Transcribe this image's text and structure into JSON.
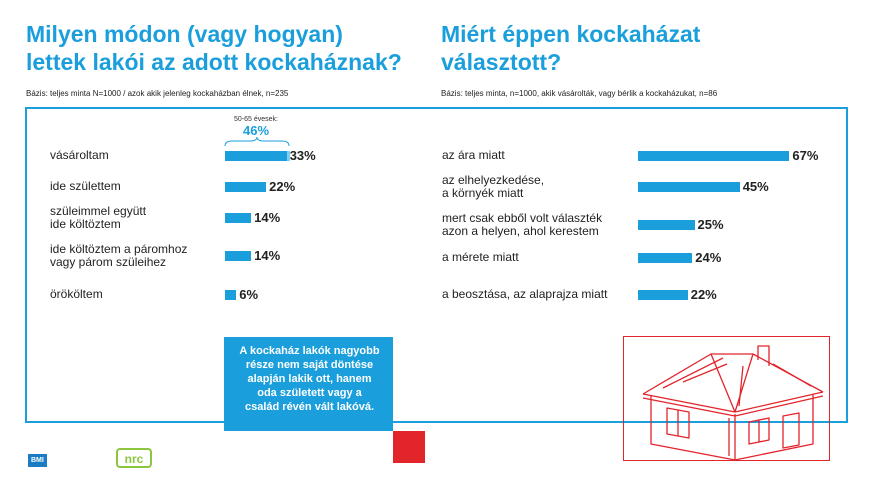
{
  "left": {
    "title_lines": [
      "Milyen módon (vagy hogyan)",
      "lettek lakói az adott kockaháznak?"
    ],
    "basis": "Bázis: teljes minta N=1000 / azok akik jelenleg kockaházban élnek, n=235",
    "annotation_label": "50-65 évesek:",
    "annotation_value": "46%",
    "annotation_number": 46
  },
  "right": {
    "title_lines": [
      "Miért éppen kockaházat",
      "választott?"
    ],
    "basis": "Bázis: teljes minta, n=1000, akik vásárolták, vagy bérlik a kockaházukat, n=86"
  },
  "chart_data": [
    {
      "type": "bar",
      "orientation": "horizontal",
      "title": "Milyen módon (vagy hogyan) lettek lakói az adott kockaháznak?",
      "categories": [
        [
          "vásároltam"
        ],
        [
          "ide születtem"
        ],
        [
          "szüleimmel együtt",
          "ide költöztem"
        ],
        [
          "ide költöztem a páromhoz",
          "vagy párom szüleihez"
        ],
        [
          "örököltem"
        ]
      ],
      "values": [
        33,
        22,
        14,
        14,
        6
      ],
      "labels": [
        "33%",
        "22%",
        "14%",
        "14%",
        "6%"
      ],
      "unit": "%"
    },
    {
      "type": "bar",
      "orientation": "horizontal",
      "title": "Miért éppen kockaházat választott?",
      "categories": [
        [
          "az ára miatt"
        ],
        [
          "az elhelyezkedése,",
          "a környék miatt"
        ],
        [
          "mert csak ebből volt választék",
          "azon a helyen, ahol kerestem"
        ],
        [
          "a mérete miatt"
        ],
        [
          "a beosztása, az alaprajza miatt"
        ]
      ],
      "values": [
        67,
        45,
        25,
        24,
        22
      ],
      "labels": [
        "67%",
        "45%",
        "25%",
        "24%",
        "22%"
      ],
      "unit": "%"
    }
  ],
  "callout_lines": [
    "A kockaház lakók nagyobb",
    "része nem saját döntése",
    "alapján lakik ott, hanem",
    "oda született vagy a",
    "család révén vált lakóvá."
  ],
  "logos": {
    "bmi_badge": "BMI",
    "bmi_text": "BRAMAC",
    "nrc_text": "nrc"
  },
  "colors": {
    "accent": "#1b9fdc",
    "accent_light": "#7fcdf0",
    "red": "#e2242b",
    "nrc_green": "#8cc63f"
  }
}
